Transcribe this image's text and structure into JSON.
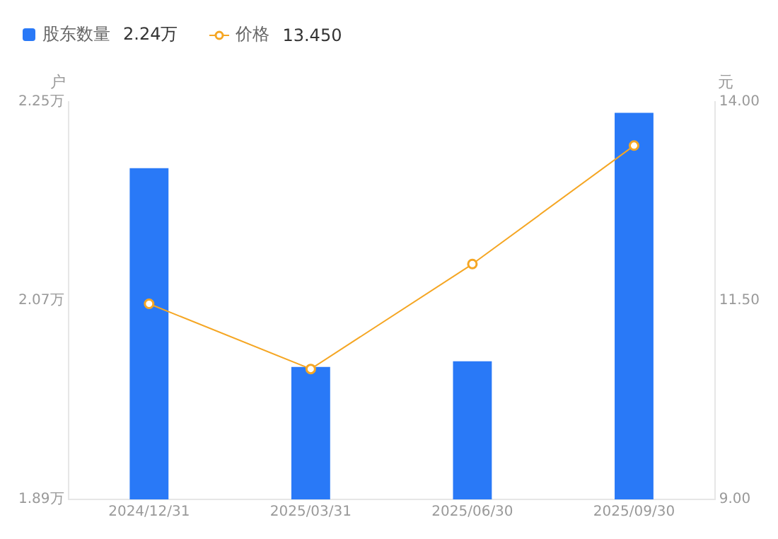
{
  "chart_data": {
    "type": "bar",
    "categories": [
      "2024/12/31",
      "2025/03/31",
      "2025/06/30",
      "2025/09/30"
    ],
    "series": [
      {
        "name": "股东数量",
        "color": "#2979f7",
        "values": [
          2.19,
          2.01,
          2.015,
          2.24
        ]
      },
      {
        "name": "价格",
        "type": "line",
        "axis": "y2",
        "color": "#f5a623",
        "values": [
          11.46,
          10.64,
          11.96,
          13.45
        ]
      }
    ],
    "ylabel": "户",
    "y2label": "元",
    "ylim": [
      1.89,
      2.25
    ],
    "yticks": [
      {
        "value": 1.89,
        "label": "1.89万"
      },
      {
        "value": 2.07,
        "label": "2.07万"
      },
      {
        "value": 2.25,
        "label": "2.25万"
      }
    ],
    "y2lim": [
      9,
      14
    ],
    "y2ticks": [
      {
        "value": 9,
        "label": "9.00"
      },
      {
        "value": 11.5,
        "label": "11.50"
      },
      {
        "value": 14,
        "label": "14.00"
      }
    ],
    "annotations": [
      "2.24万",
      "13.450"
    ],
    "legend": "top left",
    "marker": "circle",
    "line_style": "solid",
    "grid": false
  }
}
